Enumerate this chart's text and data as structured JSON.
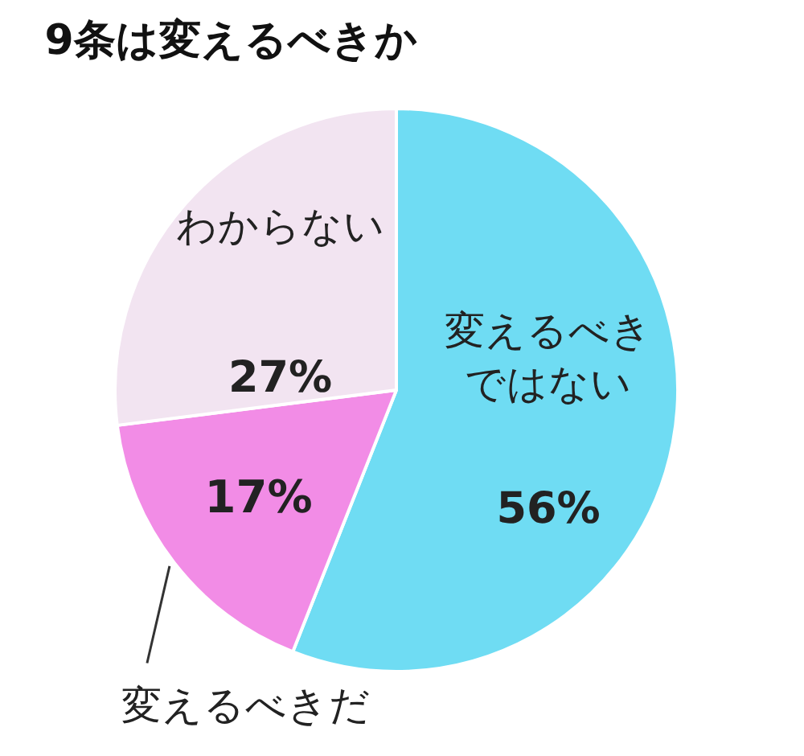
{
  "chart_data": {
    "type": "pie",
    "title": "9条は変えるべきか",
    "categories": [
      "変えるべきではない",
      "変えるべきだ",
      "わからない"
    ],
    "values": [
      56,
      17,
      27
    ],
    "colors": [
      "#6fdcf3",
      "#f28ce6",
      "#f2e4f1"
    ],
    "value_labels": [
      "56%",
      "17%",
      "27%"
    ]
  }
}
